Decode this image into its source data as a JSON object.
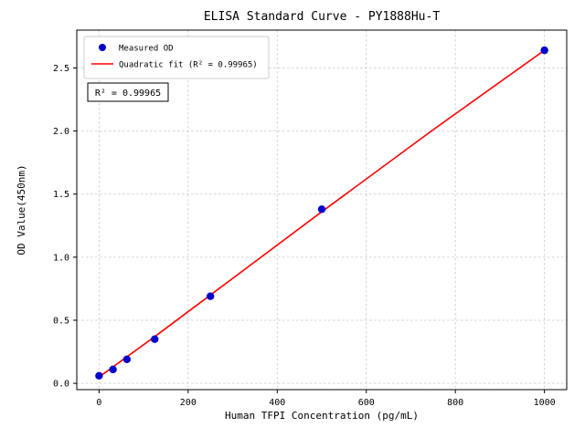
{
  "figure": {
    "background": "#ffffff",
    "border_color": "#000000",
    "grid_color": "#c8c8c8",
    "legend_edge_color": "#cccccc",
    "annotation_edge_color": "#000000"
  },
  "chart_data": {
    "type": "scatter",
    "title": "ELISA Standard Curve - PY1888Hu-T",
    "xlabel": "Human TFPI Concentration (pg/mL)",
    "ylabel": "OD Value(450nm)",
    "xlim": [
      -50,
      1050
    ],
    "ylim": [
      -0.05,
      2.8
    ],
    "xticks": [
      0,
      200,
      400,
      600,
      800,
      1000
    ],
    "xtick_labels": [
      "0",
      "200",
      "400",
      "600",
      "800",
      "1000"
    ],
    "yticks": [
      0,
      0.5,
      1.0,
      1.5,
      2.0,
      2.5
    ],
    "ytick_labels": [
      "0.0",
      "0.5",
      "1.0",
      "1.5",
      "2.0",
      "2.5"
    ],
    "grid": true,
    "legend_position": "upper left",
    "annotation": "R² = 0.99965",
    "series": [
      {
        "name": "Measured OD",
        "type": "scatter",
        "color": "#0000cc",
        "x": [
          0,
          31.25,
          62.5,
          125,
          250,
          500,
          1000
        ],
        "y": [
          0.06,
          0.11,
          0.19,
          0.35,
          0.69,
          1.38,
          2.64
        ]
      },
      {
        "name": "Quadratic fit (R² = 0.99965)",
        "type": "line",
        "color": "#ff0000",
        "x": [
          0,
          125,
          250,
          500,
          750,
          1000
        ],
        "y": [
          0.05,
          0.37,
          0.7,
          1.36,
          2.01,
          2.64
        ]
      }
    ]
  }
}
